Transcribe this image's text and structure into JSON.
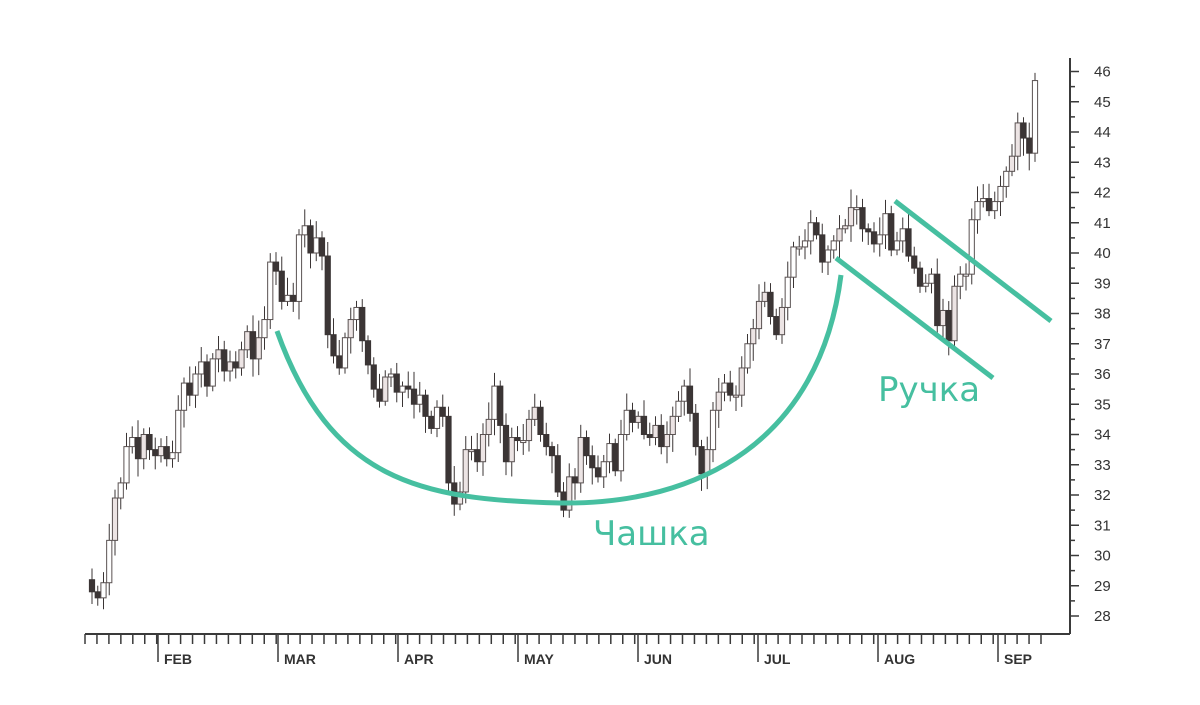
{
  "chart_data": {
    "type": "candlestick",
    "title": "",
    "xlabel": "",
    "ylabel": "",
    "ylim": [
      27.5,
      46.5
    ],
    "y_ticks": [
      28,
      29,
      30,
      31,
      32,
      33,
      34,
      35,
      36,
      37,
      38,
      39,
      40,
      41,
      42,
      43,
      44,
      45,
      46
    ],
    "y_axis_side": "right",
    "x_tick_labels": [
      "FEB",
      "MAR",
      "APR",
      "MAY",
      "JUN",
      "JUL",
      "AUG",
      "SEP"
    ],
    "grid": false,
    "legend": "none",
    "annotations": [
      {
        "name": "cup",
        "label": "Чашка"
      },
      {
        "name": "handle",
        "label": "Ручка"
      }
    ],
    "colors": {
      "pattern": "#46bfa0",
      "candle_down": "#3b3535",
      "candle_up": "#ffffff",
      "axis": "#3a3a3a"
    },
    "series": [
      {
        "values_close": [
          28.8,
          28.6,
          29.1,
          30.5,
          31.9,
          32.4,
          33.6,
          33.9,
          33.2,
          34.0,
          33.5,
          33.3,
          33.6,
          33.2,
          33.4,
          34.8,
          35.7,
          35.3,
          36.0,
          36.4,
          35.6,
          36.5,
          36.8,
          36.1,
          36.4,
          36.2,
          36.8,
          37.4,
          36.5,
          37.2,
          37.8,
          39.7,
          39.4,
          38.4,
          38.6,
          38.4,
          40.6,
          40.9,
          40.0,
          40.5,
          39.9,
          37.3,
          36.6,
          36.2,
          37.2,
          37.8,
          38.2,
          37.1,
          36.3,
          35.5,
          35.1,
          35.9,
          36.0,
          35.4,
          35.6,
          35.5,
          35.0,
          35.3,
          34.6,
          34.2,
          34.9,
          34.6,
          32.4,
          31.7,
          32.1,
          33.5,
          33.5,
          33.1,
          34.0,
          34.5,
          35.6,
          34.3,
          33.1,
          33.9,
          33.8,
          33.8,
          34.5,
          34.9,
          34.0,
          33.6,
          33.3,
          32.1,
          31.5,
          32.6,
          32.4,
          33.9,
          33.3,
          32.9,
          32.6,
          33.1,
          33.7,
          32.8,
          34.0,
          34.8,
          34.4,
          34.6,
          34.0,
          33.9,
          34.3,
          33.6,
          34.0,
          34.6,
          35.1,
          35.6,
          34.7,
          33.6,
          32.7,
          33.5,
          34.8,
          35.4,
          35.7,
          35.3,
          35.3,
          36.2,
          37.0,
          37.5,
          38.4,
          38.7,
          37.9,
          37.3,
          38.2,
          39.2,
          40.2,
          40.2,
          40.4,
          41.0,
          40.6,
          39.7,
          40.1,
          40.4,
          40.8,
          40.9,
          41.5,
          41.5,
          40.8,
          40.7,
          40.3,
          40.6,
          41.3,
          40.1,
          40.4,
          40.8,
          39.9,
          39.5,
          38.9,
          39.0,
          39.3,
          37.6,
          38.1,
          37.1,
          38.9,
          39.3,
          39.3,
          41.1,
          41.7,
          41.8,
          41.4,
          41.7,
          42.2,
          42.7,
          43.2,
          44.3,
          43.8,
          43.3,
          45.7
        ]
      }
    ]
  }
}
